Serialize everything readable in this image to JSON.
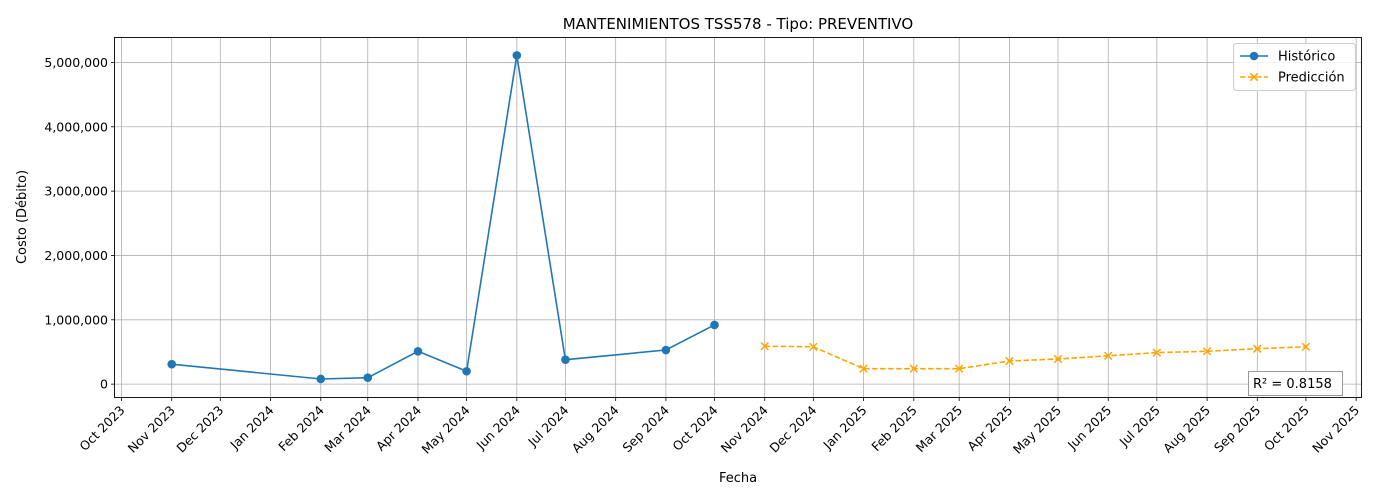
{
  "chart_data": {
    "type": "line",
    "title": "MANTENIMIENTOS TSS578 - Tipo: PREVENTIVO",
    "xlabel": "Fecha",
    "ylabel": "Costo (Débito)",
    "grid": true,
    "legend_position": "top-right",
    "x_tick_labels": [
      "Oct 2023",
      "Nov 2023",
      "Dec 2023",
      "Jan 2024",
      "Feb 2024",
      "Mar 2024",
      "Apr 2024",
      "May 2024",
      "Jun 2024",
      "Jul 2024",
      "Aug 2024",
      "Sep 2024",
      "Oct 2024",
      "Nov 2024",
      "Dec 2024",
      "Jan 2025",
      "Feb 2025",
      "Mar 2025",
      "Apr 2025",
      "May 2025",
      "Jun 2025",
      "Jul 2025",
      "Aug 2025",
      "Sep 2025",
      "Oct 2025",
      "Nov 2025"
    ],
    "x_tick_dates": [
      "2023-10-01",
      "2023-11-01",
      "2023-12-01",
      "2024-01-01",
      "2024-02-01",
      "2024-03-01",
      "2024-04-01",
      "2024-05-01",
      "2024-06-01",
      "2024-07-01",
      "2024-08-01",
      "2024-09-01",
      "2024-10-01",
      "2024-11-01",
      "2024-12-01",
      "2025-01-01",
      "2025-02-01",
      "2025-03-01",
      "2025-04-01",
      "2025-05-01",
      "2025-06-01",
      "2025-07-01",
      "2025-08-01",
      "2025-09-01",
      "2025-10-01",
      "2025-11-01"
    ],
    "xlim": [
      "2023-09-27",
      "2025-11-04"
    ],
    "y_tick_values": [
      0,
      1000000,
      2000000,
      3000000,
      4000000,
      5000000
    ],
    "y_tick_labels": [
      "0",
      "1,000,000",
      "2,000,000",
      "3,000,000",
      "4,000,000",
      "5,000,000"
    ],
    "ylim": [
      -200000,
      5380000
    ],
    "series": [
      {
        "name": "Histórico",
        "color": "#1f77b4",
        "style": "solid",
        "marker": "circle",
        "points": [
          {
            "x": "2023-11-01",
            "y": 310000
          },
          {
            "x": "2024-02-01",
            "y": 80000
          },
          {
            "x": "2024-03-01",
            "y": 100000
          },
          {
            "x": "2024-04-01",
            "y": 510000
          },
          {
            "x": "2024-05-01",
            "y": 200000
          },
          {
            "x": "2024-06-01",
            "y": 5110000
          },
          {
            "x": "2024-07-01",
            "y": 380000
          },
          {
            "x": "2024-09-01",
            "y": 530000
          },
          {
            "x": "2024-10-01",
            "y": 920000
          }
        ]
      },
      {
        "name": "Predicción",
        "color": "#ffa500",
        "style": "dashed",
        "marker": "x",
        "points": [
          {
            "x": "2024-11-01",
            "y": 590000
          },
          {
            "x": "2024-12-01",
            "y": 580000
          },
          {
            "x": "2025-01-01",
            "y": 240000
          },
          {
            "x": "2025-02-01",
            "y": 240000
          },
          {
            "x": "2025-03-01",
            "y": 240000
          },
          {
            "x": "2025-04-01",
            "y": 360000
          },
          {
            "x": "2025-05-01",
            "y": 390000
          },
          {
            "x": "2025-06-01",
            "y": 440000
          },
          {
            "x": "2025-07-01",
            "y": 490000
          },
          {
            "x": "2025-08-01",
            "y": 510000
          },
          {
            "x": "2025-09-01",
            "y": 550000
          },
          {
            "x": "2025-10-01",
            "y": 580000
          }
        ]
      }
    ],
    "annotation": "R² = 0.8158"
  }
}
